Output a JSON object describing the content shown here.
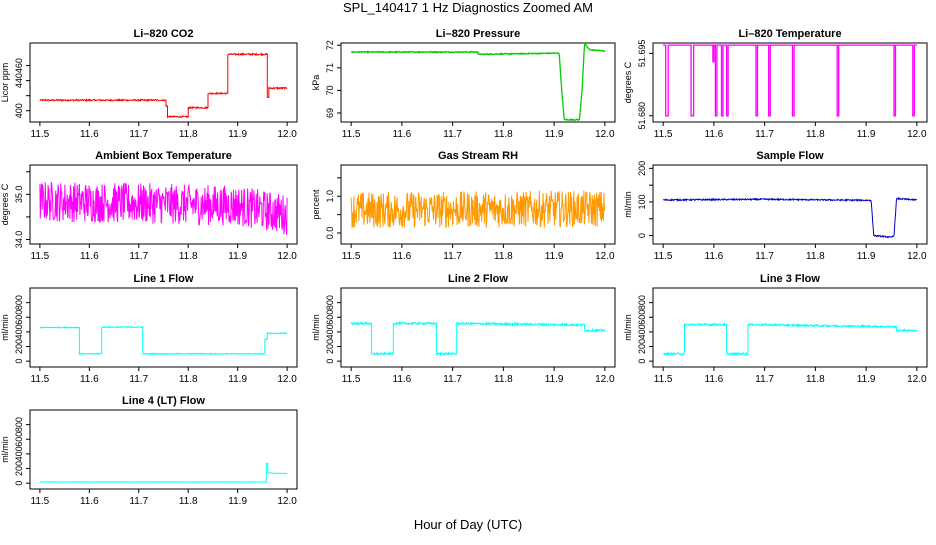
{
  "figure": {
    "title": "SPL_140417  1 Hz Diagnostics Zoomed AM",
    "xlabel": "Hour of Day (UTC)"
  },
  "chart_data": [
    {
      "type": "line",
      "title": "Li–820 CO2",
      "ylabel": "Licor ppm",
      "color": "#ff0000",
      "xlim": [
        11.48,
        12.02
      ],
      "xticks": [
        "11.5",
        "11.6",
        "11.7",
        "11.8",
        "11.9",
        "12.0"
      ],
      "ylim": [
        385,
        490
      ],
      "yticks": [
        400,
        420,
        440,
        460
      ],
      "ytick_labels": [
        "400",
        "",
        "440",
        "460"
      ],
      "noise": 1.0,
      "series": [
        {
          "name": "",
          "x": [
            11.5,
            11.755,
            11.755,
            11.758,
            11.758,
            11.8,
            11.8,
            11.84,
            11.84,
            11.88,
            11.88,
            11.96,
            11.96,
            11.963,
            11.963,
            12.0
          ],
          "y": [
            414,
            414,
            406,
            406,
            392,
            392,
            404,
            404,
            423,
            423,
            475,
            475,
            418,
            418,
            430,
            430
          ]
        }
      ]
    },
    {
      "type": "line",
      "title": "Li–820 Pressure",
      "ylabel": "kPa",
      "color": "#00cc00",
      "xlim": [
        11.48,
        12.02
      ],
      "xticks": [
        "11.5",
        "11.6",
        "11.7",
        "11.8",
        "11.9",
        "12.0"
      ],
      "ylim": [
        68.6,
        72.1
      ],
      "yticks": [
        69,
        70,
        71,
        72
      ],
      "ytick_labels": [
        "69",
        "70",
        "71",
        "72"
      ],
      "noise": 0.02,
      "series": [
        {
          "name": "",
          "x": [
            11.5,
            11.75,
            11.75,
            11.91,
            11.915,
            11.92,
            11.95,
            11.955,
            11.96,
            11.97,
            12.0
          ],
          "y": [
            71.7,
            71.7,
            71.6,
            71.65,
            70.0,
            68.7,
            68.7,
            70.0,
            72.05,
            71.8,
            71.75
          ]
        }
      ]
    },
    {
      "type": "line",
      "title": "Li–820 Temperature",
      "ylabel": "degrees C",
      "color": "#ff00ff",
      "xlim": [
        11.48,
        12.02
      ],
      "xticks": [
        "11.5",
        "11.6",
        "11.7",
        "11.8",
        "11.9",
        "12.0"
      ],
      "ylim": [
        51.6785,
        51.6975
      ],
      "yticks": [
        51.68,
        51.695
      ],
      "ytick_labels": [
        "51.680",
        "51.695"
      ],
      "noise": 0,
      "series": [
        {
          "name": "",
          "x": [
            11.5,
            11.505,
            11.505,
            11.51,
            11.51,
            11.555,
            11.555,
            11.56,
            11.56,
            11.598,
            11.598,
            11.6,
            11.6,
            11.603,
            11.603,
            11.606,
            11.606,
            11.615,
            11.615,
            11.618,
            11.618,
            11.625,
            11.625,
            11.628,
            11.628,
            11.683,
            11.683,
            11.686,
            11.686,
            11.708,
            11.708,
            11.711,
            11.711,
            11.755,
            11.755,
            11.758,
            11.758,
            11.843,
            11.843,
            11.846,
            11.846,
            11.955,
            11.955,
            11.958,
            11.958,
            11.992,
            11.992,
            11.995,
            11.995,
            12.0
          ],
          "y": [
            51.697,
            51.697,
            51.68,
            51.68,
            51.697,
            51.697,
            51.68,
            51.68,
            51.697,
            51.697,
            51.693,
            51.693,
            51.697,
            51.697,
            51.68,
            51.68,
            51.697,
            51.697,
            51.68,
            51.68,
            51.697,
            51.697,
            51.68,
            51.68,
            51.697,
            51.697,
            51.68,
            51.68,
            51.697,
            51.697,
            51.68,
            51.68,
            51.697,
            51.697,
            51.68,
            51.68,
            51.697,
            51.697,
            51.68,
            51.68,
            51.697,
            51.697,
            51.68,
            51.68,
            51.697,
            51.697,
            51.68,
            51.68,
            51.697,
            51.697
          ]
        }
      ]
    },
    {
      "type": "line",
      "title": "Ambient Box Temperature",
      "ylabel": "degrees C",
      "color": "#ff00ff",
      "xlim": [
        11.48,
        12.02
      ],
      "xticks": [
        "11.5",
        "11.6",
        "11.7",
        "11.8",
        "11.9",
        "12.0"
      ],
      "ylim": [
        33.9,
        35.65
      ],
      "yticks": [
        34.0,
        34.5,
        35.0,
        35.5
      ],
      "ytick_labels": [
        "34.0",
        "",
        "35.0",
        ""
      ],
      "noise": 0.45,
      "series": [
        {
          "name": "",
          "x": [
            11.5,
            11.7,
            11.9,
            12.0
          ],
          "y": [
            34.85,
            34.8,
            34.75,
            34.55
          ]
        }
      ]
    },
    {
      "type": "line",
      "title": "Gas Stream RH",
      "ylabel": "percent",
      "color": "#ff9900",
      "xlim": [
        11.48,
        12.02
      ],
      "xticks": [
        "11.5",
        "11.6",
        "11.7",
        "11.8",
        "11.9",
        "12.0"
      ],
      "ylim": [
        -0.3,
        1.85
      ],
      "yticks": [
        0.0,
        0.5,
        1.0,
        1.5
      ],
      "ytick_labels": [
        "0.0",
        "",
        "1.0",
        ""
      ],
      "noise": 0.5,
      "series": [
        {
          "name": "",
          "x": [
            11.5,
            12.0
          ],
          "y": [
            0.62,
            0.66
          ]
        }
      ]
    },
    {
      "type": "line",
      "title": "Sample Flow",
      "ylabel": "ml/min",
      "color": "#0000cc",
      "xlim": [
        11.48,
        12.02
      ],
      "xticks": [
        "11.5",
        "11.6",
        "11.7",
        "11.8",
        "11.9",
        "12.0"
      ],
      "ylim": [
        -25,
        210
      ],
      "yticks": [
        0,
        50,
        100,
        150,
        200
      ],
      "ytick_labels": [
        "0",
        "",
        "100",
        "",
        "200"
      ],
      "noise": 2,
      "series": [
        {
          "name": "",
          "x": [
            11.5,
            11.7,
            11.9,
            11.91,
            11.915,
            11.95,
            11.955,
            11.96,
            12.0
          ],
          "y": [
            106,
            108,
            105,
            105,
            0,
            -5,
            0,
            110,
            106
          ]
        }
      ]
    },
    {
      "type": "line",
      "title": "Line 1 Flow",
      "ylabel": "ml/min",
      "color": "#00ffff",
      "xlim": [
        11.48,
        12.02
      ],
      "xticks": [
        "11.5",
        "11.6",
        "11.7",
        "11.8",
        "11.9",
        "12.0"
      ],
      "ylim": [
        -80,
        1000
      ],
      "yticks": [
        0,
        200,
        400,
        600,
        800
      ],
      "ytick_labels": [
        "0",
        "200",
        "400",
        "600",
        "800"
      ],
      "noise": 6,
      "series": [
        {
          "name": "",
          "x": [
            11.5,
            11.58,
            11.58,
            11.625,
            11.625,
            11.708,
            11.708,
            11.955,
            11.955,
            11.96,
            11.96,
            12.0
          ],
          "y": [
            460,
            460,
            100,
            100,
            465,
            465,
            100,
            100,
            300,
            300,
            380,
            380
          ]
        }
      ]
    },
    {
      "type": "line",
      "title": "Line 2 Flow",
      "ylabel": "ml/min",
      "color": "#00ffff",
      "xlim": [
        11.48,
        12.02
      ],
      "xticks": [
        "11.5",
        "11.6",
        "11.7",
        "11.8",
        "11.9",
        "12.0"
      ],
      "ylim": [
        -80,
        1000
      ],
      "yticks": [
        0,
        200,
        400,
        600,
        800
      ],
      "ytick_labels": [
        "0",
        "200",
        "400",
        "600",
        "800"
      ],
      "noise": 14,
      "series": [
        {
          "name": "",
          "x": [
            11.5,
            11.54,
            11.54,
            11.583,
            11.583,
            11.668,
            11.668,
            11.708,
            11.708,
            11.96,
            11.96,
            12.0
          ],
          "y": [
            515,
            515,
            100,
            100,
            515,
            515,
            100,
            100,
            515,
            495,
            420,
            420
          ]
        }
      ]
    },
    {
      "type": "line",
      "title": "Line 3 Flow",
      "ylabel": "ml/min",
      "color": "#00ffff",
      "xlim": [
        11.48,
        12.02
      ],
      "xticks": [
        "11.5",
        "11.6",
        "11.7",
        "11.8",
        "11.9",
        "12.0"
      ],
      "ylim": [
        -80,
        1000
      ],
      "yticks": [
        0,
        200,
        400,
        600,
        800
      ],
      "ytick_labels": [
        "0",
        "200",
        "400",
        "600",
        "800"
      ],
      "noise": 12,
      "series": [
        {
          "name": "",
          "x": [
            11.5,
            11.542,
            11.542,
            11.625,
            11.625,
            11.667,
            11.667,
            11.96,
            11.96,
            12.0
          ],
          "y": [
            100,
            100,
            500,
            500,
            100,
            100,
            500,
            470,
            420,
            420
          ]
        }
      ]
    },
    {
      "type": "line",
      "title": "Line 4 (LT) Flow",
      "ylabel": "ml/min",
      "color": "#00ffff",
      "xlim": [
        11.48,
        12.02
      ],
      "xticks": [
        "11.5",
        "11.6",
        "11.7",
        "11.8",
        "11.9",
        "12.0"
      ],
      "ylim": [
        -80,
        1000
      ],
      "yticks": [
        0,
        200,
        400,
        600,
        800
      ],
      "ytick_labels": [
        "0",
        "200",
        "400",
        "600",
        "800"
      ],
      "noise": 2,
      "series": [
        {
          "name": "",
          "x": [
            11.5,
            11.958,
            11.958,
            11.961,
            11.961,
            12.0
          ],
          "y": [
            15,
            15,
            270,
            270,
            140,
            130
          ]
        }
      ]
    }
  ]
}
